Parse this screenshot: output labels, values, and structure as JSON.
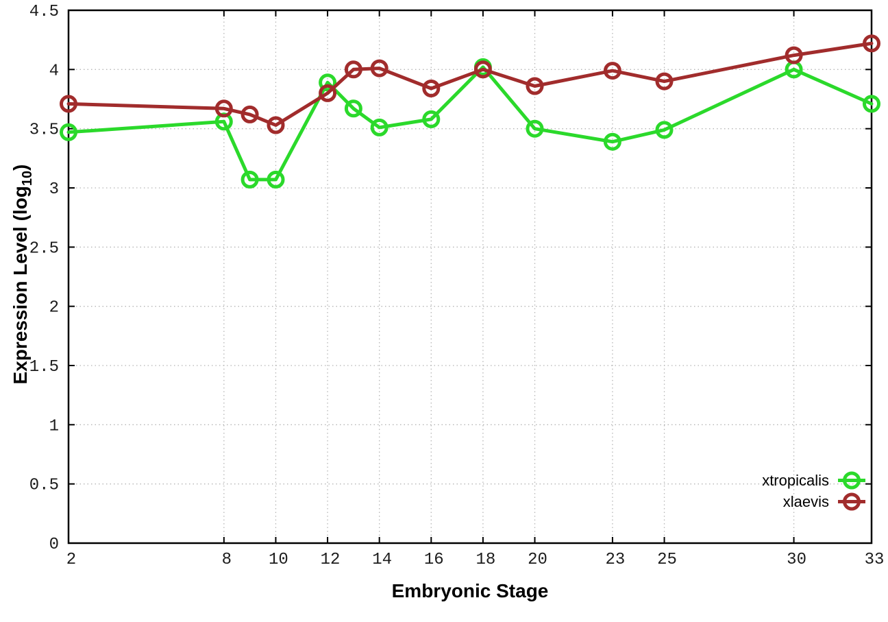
{
  "chart_data": {
    "type": "line",
    "title": "",
    "xlabel": "Embryonic Stage",
    "ylabel": "Expression Level (log10)",
    "x": [
      2,
      8,
      9,
      10,
      12,
      13,
      14,
      16,
      18,
      20,
      23,
      25,
      30,
      33
    ],
    "xlim": [
      2,
      33
    ],
    "ylim": [
      0,
      4.5
    ],
    "grid": true,
    "legend_position": "bottom-right",
    "xticks": {
      "values": [
        2,
        8,
        10,
        12,
        14,
        16,
        18,
        20,
        23,
        25,
        30,
        33
      ],
      "labels": [
        "2",
        "8",
        "10",
        "12",
        "14",
        "16",
        "18",
        "20",
        "23",
        "25",
        "30",
        "33"
      ]
    },
    "yticks": {
      "values": [
        0,
        0.5,
        1,
        1.5,
        2,
        2.5,
        3,
        3.5,
        4,
        4.5
      ],
      "labels": [
        "0",
        "0.5",
        "1",
        "1.5",
        "2",
        "2.5",
        "3",
        "3.5",
        "4",
        "4.5"
      ]
    },
    "series": [
      {
        "name": "xtropicalis",
        "color": "#2bd92b",
        "marker": "open-circle",
        "values": [
          3.47,
          3.56,
          3.07,
          3.07,
          3.89,
          3.67,
          3.51,
          3.58,
          4.02,
          3.5,
          3.39,
          3.49,
          4.0,
          3.71
        ]
      },
      {
        "name": "xlaevis",
        "color": "#a12c2c",
        "marker": "open-circle",
        "values": [
          3.71,
          3.67,
          3.62,
          3.53,
          3.8,
          4.0,
          4.01,
          3.84,
          4.0,
          3.86,
          3.99,
          3.9,
          4.12,
          4.22
        ]
      }
    ]
  },
  "labels": {
    "ylabel_prefix": "Expression Level (log",
    "ylabel_sub": "10",
    "ylabel_suffix": ")"
  },
  "style": {
    "background": "#ffffff",
    "grid_color": "#b5b5b5",
    "axis_color": "#000000",
    "tick_label_color": "#1c1c1c",
    "line_width": 5,
    "marker_radius": 10.5
  }
}
